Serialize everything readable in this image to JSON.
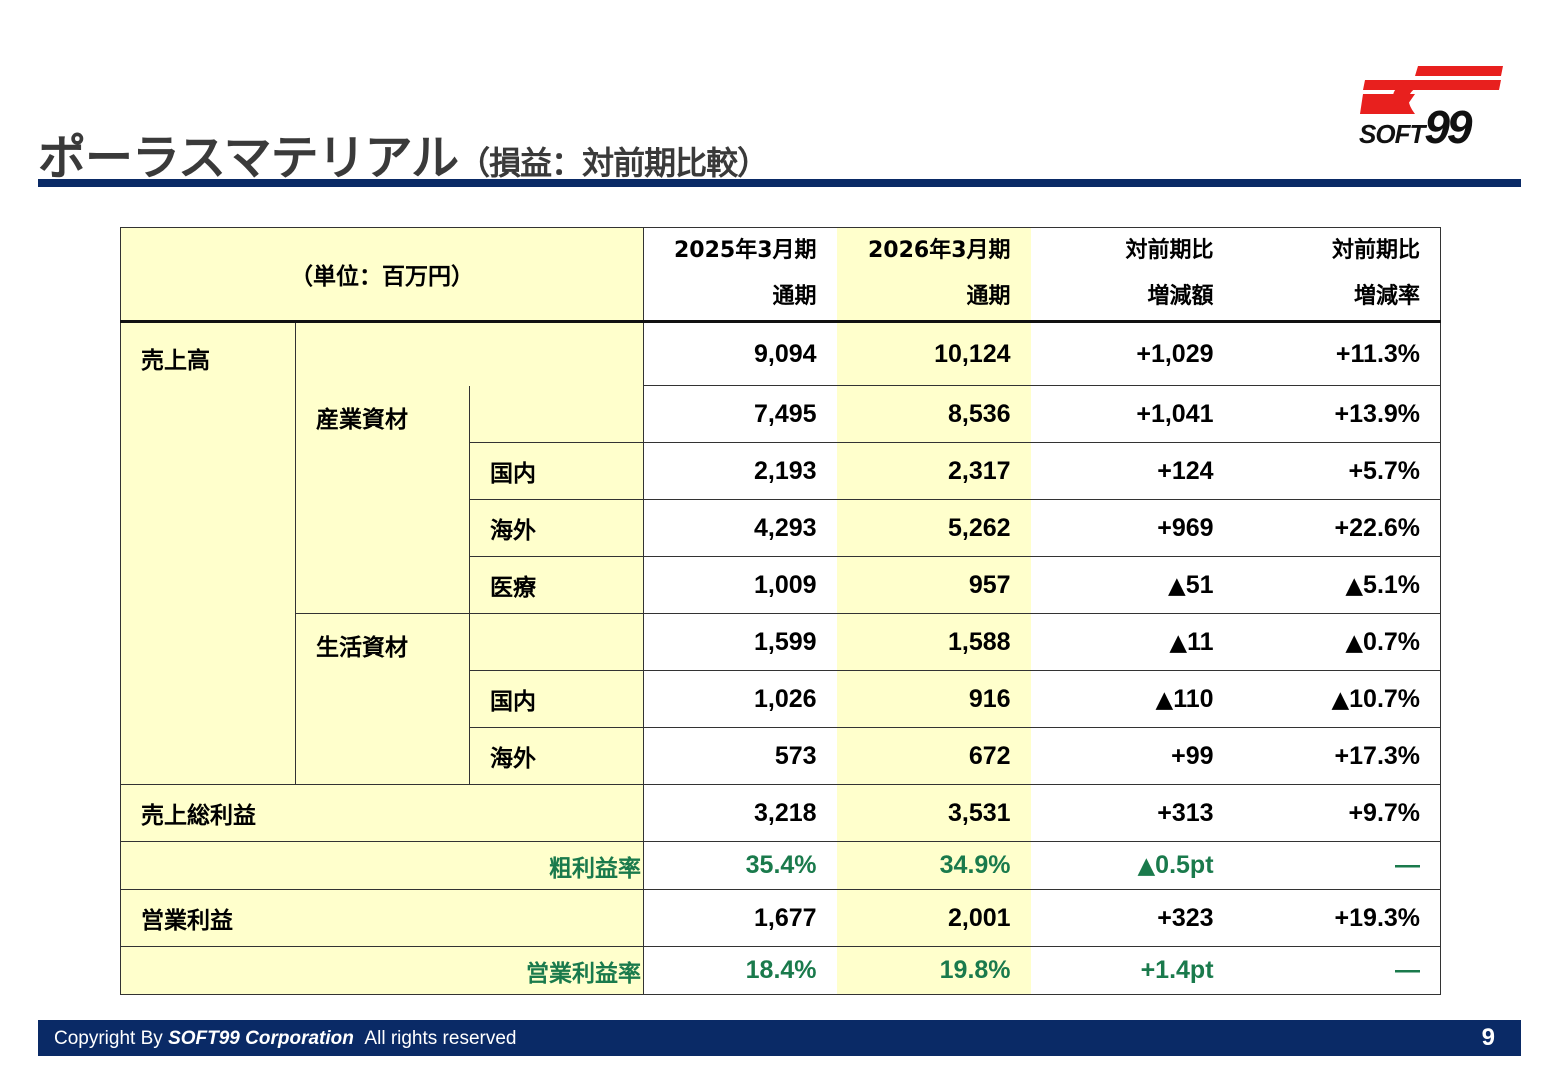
{
  "header": {
    "title": "ポーラスマテリアル",
    "subtitle": "（損益：対前期比較）",
    "logo_text": "SOFT99",
    "logo_colors": {
      "band": "#e8201e",
      "text": "#111111"
    },
    "rule_color": "#0a2a66"
  },
  "table": {
    "unit_label": "（単位：百万円）",
    "columns": [
      {
        "line1": "2025年3月期",
        "line2": "通期"
      },
      {
        "line1": "2026年3月期",
        "line2": "通期"
      },
      {
        "line1": "対前期比",
        "line2": "増減額"
      },
      {
        "line1": "対前期比",
        "line2": "増減率"
      }
    ],
    "rows": {
      "sales": {
        "label": "売上高",
        "values": [
          "9,094",
          "10,124",
          "+1,029",
          "+11.3%"
        ]
      },
      "industrial": {
        "label": "産業資材",
        "values": [
          "7,495",
          "8,536",
          "+1,041",
          "+13.9%"
        ]
      },
      "ind_domestic": {
        "label": "国内",
        "values": [
          "2,193",
          "2,317",
          "+124",
          "+5.7%"
        ]
      },
      "ind_overseas": {
        "label": "海外",
        "values": [
          "4,293",
          "5,262",
          "+969",
          "+22.6%"
        ]
      },
      "ind_medical": {
        "label": "医療",
        "values": [
          "1,009",
          "957",
          "51",
          "5.1%"
        ]
      },
      "living": {
        "label": "生活資材",
        "values": [
          "1,599",
          "1,588",
          "11",
          "0.7%"
        ]
      },
      "liv_domestic": {
        "label": "国内",
        "values": [
          "1,026",
          "916",
          "110",
          "10.7%"
        ]
      },
      "liv_overseas": {
        "label": "海外",
        "values": [
          "573",
          "672",
          "+99",
          "+17.3%"
        ]
      },
      "gross_profit": {
        "label": "売上総利益",
        "values": [
          "3,218",
          "3,531",
          "+313",
          "+9.7%"
        ]
      },
      "gross_margin": {
        "label": "粗利益率",
        "values": [
          "35.4%",
          "34.9%",
          "0.5pt",
          "—"
        ]
      },
      "operating_profit": {
        "label": "営業利益",
        "values": [
          "1,677",
          "2,001",
          "+323",
          "+19.3%"
        ]
      },
      "operating_margin": {
        "label": "営業利益率",
        "values": [
          "18.4%",
          "19.8%",
          "+1.4pt",
          "—"
        ]
      }
    },
    "decrease_marker": "▲",
    "colors": {
      "highlight": "#ffffcc",
      "ratio_text": "#1a7a4c"
    }
  },
  "footer": {
    "copyright_prefix": "Copyright By",
    "company": "SOFT99 Corporation",
    "rights": "All rights reserved",
    "page_number": "9"
  }
}
